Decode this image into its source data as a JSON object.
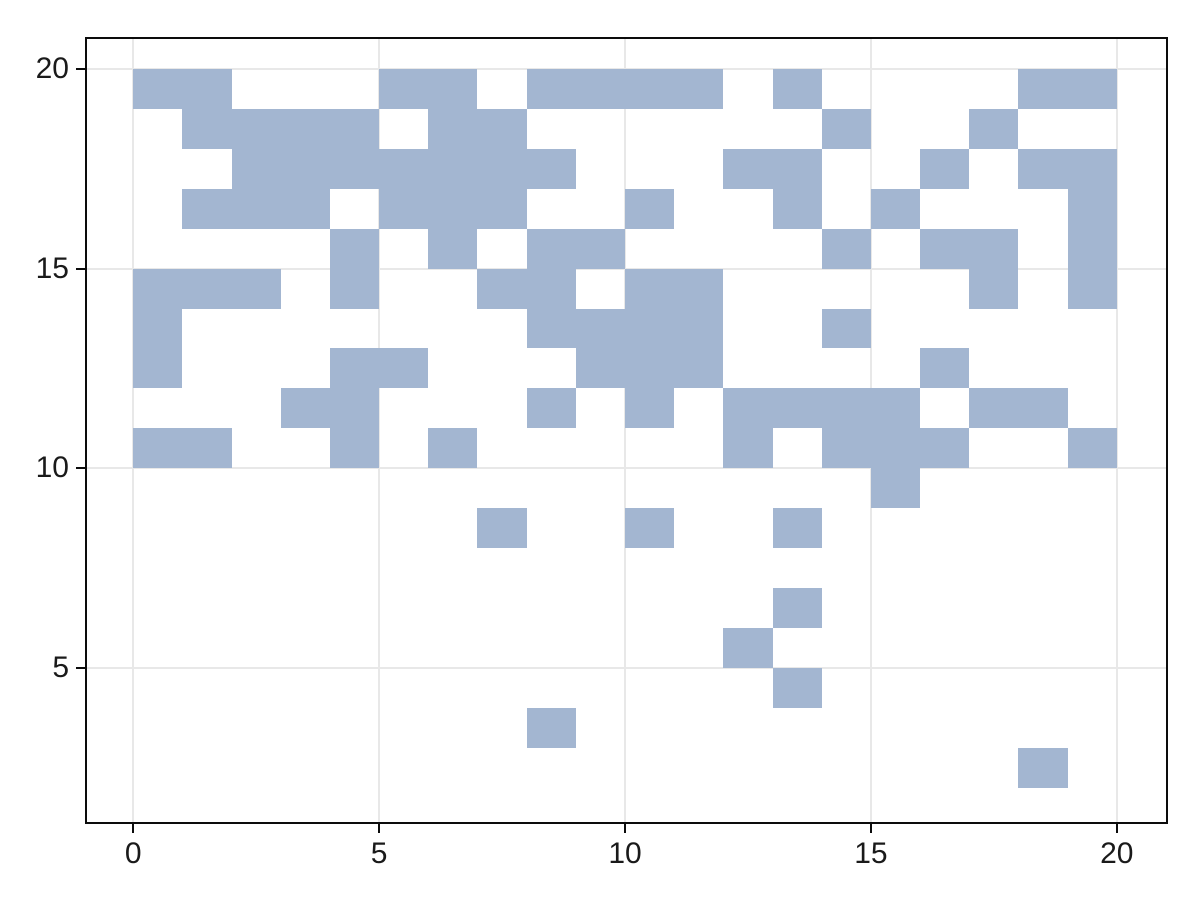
{
  "chart_data": {
    "type": "heatmap",
    "title": "",
    "xlabel": "",
    "ylabel": "",
    "legend": "none",
    "grid": "on, at major ticks only, drawn under cells",
    "x_ticks": [
      0,
      5,
      10,
      15,
      20
    ],
    "y_ticks": [
      5,
      10,
      15,
      20
    ],
    "x_tick_labels": [
      "0",
      "5",
      "10",
      "15",
      "20"
    ],
    "y_tick_labels": [
      "5",
      "10",
      "15",
      "20"
    ],
    "xlim": [
      -0.94,
      21.0
    ],
    "ylim": [
      1.14,
      20.75
    ],
    "cell_size": [
      1,
      1
    ],
    "cells_note": "each entry is [col,row]; a filled unit square spans x=col..col+1, y=row..row+1",
    "cells": [
      [
        0,
        19
      ],
      [
        1,
        19
      ],
      [
        5,
        19
      ],
      [
        6,
        19
      ],
      [
        8,
        19
      ],
      [
        9,
        19
      ],
      [
        10,
        19
      ],
      [
        11,
        19
      ],
      [
        13,
        19
      ],
      [
        18,
        19
      ],
      [
        19,
        19
      ],
      [
        1,
        18
      ],
      [
        2,
        18
      ],
      [
        3,
        18
      ],
      [
        4,
        18
      ],
      [
        6,
        18
      ],
      [
        7,
        18
      ],
      [
        14,
        18
      ],
      [
        17,
        18
      ],
      [
        2,
        17
      ],
      [
        3,
        17
      ],
      [
        4,
        17
      ],
      [
        5,
        17
      ],
      [
        6,
        17
      ],
      [
        7,
        17
      ],
      [
        8,
        17
      ],
      [
        12,
        17
      ],
      [
        13,
        17
      ],
      [
        16,
        17
      ],
      [
        18,
        17
      ],
      [
        19,
        17
      ],
      [
        1,
        16
      ],
      [
        2,
        16
      ],
      [
        3,
        16
      ],
      [
        5,
        16
      ],
      [
        6,
        16
      ],
      [
        7,
        16
      ],
      [
        10,
        16
      ],
      [
        13,
        16
      ],
      [
        15,
        16
      ],
      [
        19,
        16
      ],
      [
        4,
        15
      ],
      [
        6,
        15
      ],
      [
        8,
        15
      ],
      [
        9,
        15
      ],
      [
        14,
        15
      ],
      [
        16,
        15
      ],
      [
        17,
        15
      ],
      [
        19,
        15
      ],
      [
        0,
        14
      ],
      [
        1,
        14
      ],
      [
        2,
        14
      ],
      [
        4,
        14
      ],
      [
        7,
        14
      ],
      [
        8,
        14
      ],
      [
        10,
        14
      ],
      [
        11,
        14
      ],
      [
        17,
        14
      ],
      [
        19,
        14
      ],
      [
        0,
        13
      ],
      [
        8,
        13
      ],
      [
        9,
        13
      ],
      [
        10,
        13
      ],
      [
        11,
        13
      ],
      [
        14,
        13
      ],
      [
        0,
        12
      ],
      [
        4,
        12
      ],
      [
        5,
        12
      ],
      [
        9,
        12
      ],
      [
        10,
        12
      ],
      [
        11,
        12
      ],
      [
        16,
        12
      ],
      [
        3,
        11
      ],
      [
        4,
        11
      ],
      [
        8,
        11
      ],
      [
        10,
        11
      ],
      [
        12,
        11
      ],
      [
        13,
        11
      ],
      [
        14,
        11
      ],
      [
        15,
        11
      ],
      [
        17,
        11
      ],
      [
        18,
        11
      ],
      [
        0,
        10
      ],
      [
        1,
        10
      ],
      [
        4,
        10
      ],
      [
        6,
        10
      ],
      [
        12,
        10
      ],
      [
        14,
        10
      ],
      [
        15,
        10
      ],
      [
        16,
        10
      ],
      [
        19,
        10
      ],
      [
        15,
        9
      ],
      [
        7,
        8
      ],
      [
        10,
        8
      ],
      [
        13,
        8
      ],
      [
        13,
        6
      ],
      [
        12,
        5
      ],
      [
        13,
        4
      ],
      [
        8,
        3
      ],
      [
        18,
        2
      ]
    ]
  },
  "style": {
    "cell_color": "#a3b6d1",
    "grid_color": "#e8e8e8",
    "spine_color": "#0c0c0c",
    "tick_label_color": "#1a1a1a",
    "background": "#ffffff"
  }
}
